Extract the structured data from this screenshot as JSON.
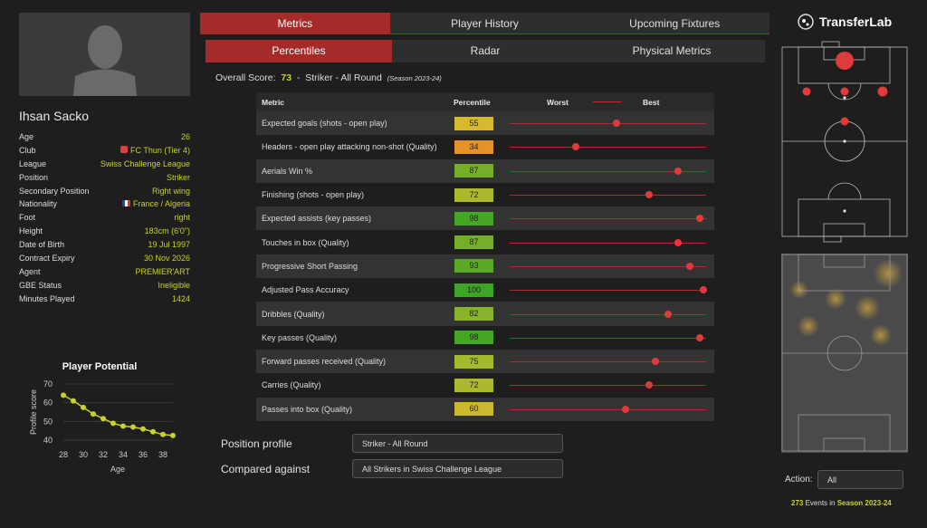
{
  "player": {
    "name": "Ihsan Sacko",
    "fields": [
      {
        "label": "Age",
        "value": "26"
      },
      {
        "label": "Club",
        "value": "FC Thun (Tier 4)"
      },
      {
        "label": "League",
        "value": "Swiss Challenge League"
      },
      {
        "label": "Position",
        "value": "Striker"
      },
      {
        "label": "Secondary Position",
        "value": "Right wing"
      },
      {
        "label": "Nationality",
        "value": "France / Algeria"
      },
      {
        "label": "Foot",
        "value": "right"
      },
      {
        "label": "Height",
        "value": "183cm (6'0\")"
      },
      {
        "label": "Date of Birth",
        "value": "19 Jul 1997"
      },
      {
        "label": "Contract Expiry",
        "value": "30 Nov 2026"
      },
      {
        "label": "Agent",
        "value": "PREMIER'ART"
      },
      {
        "label": "GBE Status",
        "value": "Ineligible"
      },
      {
        "label": "Minutes Played",
        "value": "1424"
      }
    ]
  },
  "tabs": [
    "Metrics",
    "Player History",
    "Upcoming Fixtures"
  ],
  "subtabs": [
    "Percentiles",
    "Radar",
    "Physical Metrics"
  ],
  "score": {
    "label": "Overall Score:",
    "value": "73",
    "sep": "-",
    "profile": "Striker - All Round",
    "season": "(Season 2023-24)"
  },
  "table": {
    "headers": [
      "Metric",
      "Percentile",
      "Worst",
      "Best"
    ],
    "rows": [
      {
        "metric": "Expected goals (shots - open play)",
        "p": 55
      },
      {
        "metric": "Headers - open play attacking non-shot (Quality)",
        "p": 34
      },
      {
        "metric": "Aerials Win %",
        "p": 87
      },
      {
        "metric": "Finishing (shots - open play)",
        "p": 72
      },
      {
        "metric": "Expected assists (key passes)",
        "p": 98
      },
      {
        "metric": "Touches in box (Quality)",
        "p": 87
      },
      {
        "metric": "Progressive Short Passing",
        "p": 93
      },
      {
        "metric": "Adjusted Pass Accuracy",
        "p": 100
      },
      {
        "metric": "Dribbles (Quality)",
        "p": 82
      },
      {
        "metric": "Key passes (Quality)",
        "p": 98
      },
      {
        "metric": "Forward passes received (Quality)",
        "p": 75
      },
      {
        "metric": "Carries (Quality)",
        "p": 72
      },
      {
        "metric": "Passes into box (Quality)",
        "p": 60
      }
    ]
  },
  "profile": {
    "label": "Position profile",
    "value": "Striker - All Round"
  },
  "compared": {
    "label": "Compared against",
    "value": "All Strikers in Swiss Challenge League"
  },
  "logo": "TransferLab",
  "action": {
    "label": "Action:",
    "value": "All"
  },
  "events": {
    "count": "273",
    "mid": " Events in ",
    "season": "Season 2023-24"
  },
  "chart_data": {
    "type": "line",
    "title": "Player Potential",
    "xlabel": "Age",
    "ylabel": "Profile score",
    "x": [
      28,
      29,
      30,
      31,
      32,
      33,
      34,
      35,
      36,
      37,
      38,
      39
    ],
    "y": [
      64,
      61,
      57.5,
      54,
      51.5,
      49,
      47.5,
      47,
      46,
      44.5,
      43,
      42.5
    ],
    "xticks": [
      28,
      30,
      32,
      34,
      36,
      38
    ],
    "yticks": [
      40,
      50,
      60,
      70
    ],
    "xlim": [
      28,
      39
    ],
    "ylim": [
      40,
      70
    ],
    "color": "#c8d22a"
  }
}
